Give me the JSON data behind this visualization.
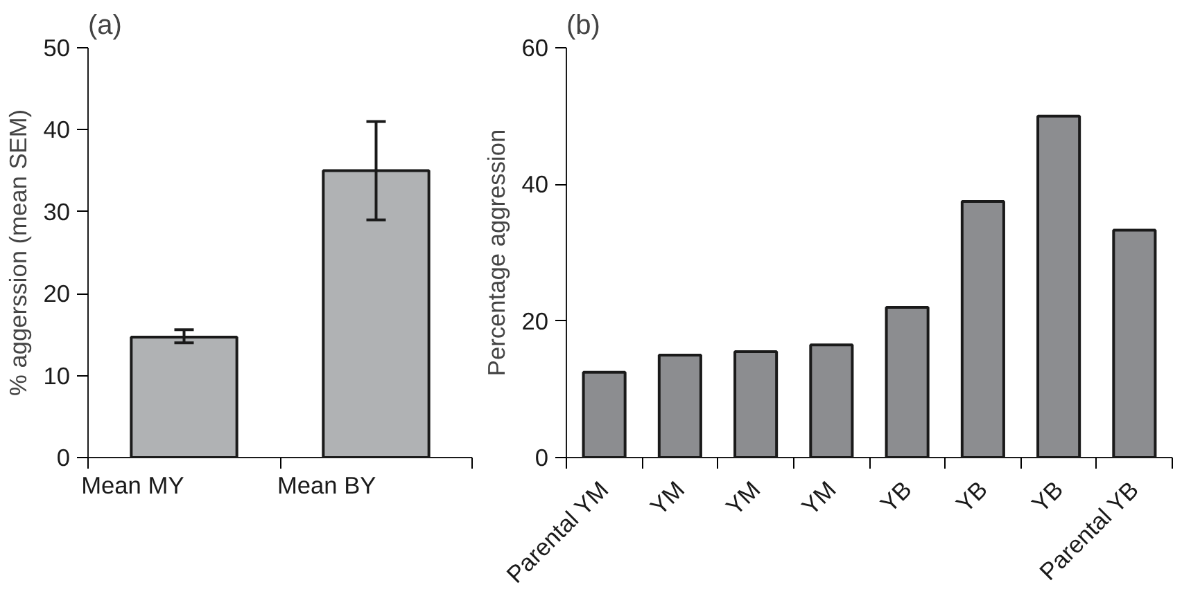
{
  "chart_data": [
    {
      "type": "bar",
      "title": "(a)",
      "ylabel": "% aggerssion (mean SEM)",
      "categories": [
        "Mean MY",
        "Mean BY"
      ],
      "values": [
        14.7,
        35
      ],
      "errors": [
        [
          14.0,
          15.6
        ],
        [
          29,
          41
        ]
      ],
      "color": "#b0b2b4",
      "ylim": [
        0,
        50
      ],
      "yticks": [
        0,
        10,
        20,
        30,
        40,
        50
      ],
      "grid": false
    },
    {
      "type": "bar",
      "title": "(b)",
      "ylabel": "Percentage aggression",
      "categories": [
        "Parental YM",
        "YM",
        "YM",
        "YM",
        "YB",
        "YB",
        "YB",
        "Parental YB"
      ],
      "values": [
        12.5,
        15.0,
        15.5,
        16.5,
        22.0,
        37.5,
        50,
        33.3
      ],
      "color": "#8c8d90",
      "ylim": [
        0,
        60
      ],
      "yticks": [
        0,
        20,
        40,
        60
      ],
      "grid": false
    }
  ]
}
